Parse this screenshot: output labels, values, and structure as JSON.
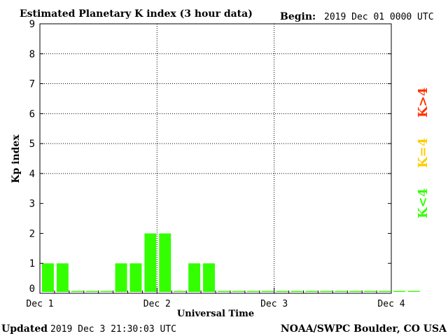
{
  "header": {
    "title": "Estimated Planetary K index (3 hour data)",
    "begin_label": "Begin:",
    "begin_value": "2019 Dec 01 0000 UTC"
  },
  "footer": {
    "updated_label": "Updated",
    "updated_value": "2019 Dec  3 21:30:03 UTC",
    "source": "NOAA/SWPC Boulder, CO USA"
  },
  "legend": {
    "low": "K<4",
    "equal": "K=4",
    "high": "K>4",
    "colors": {
      "low": "#33ff00",
      "equal": "#ffcc00",
      "high": "#ff3300"
    }
  },
  "chart_data": {
    "type": "bar",
    "title": "Estimated Planetary K index (3 hour data)",
    "xlabel": "Universal Time",
    "ylabel": "Kp index",
    "ylim": [
      0,
      9
    ],
    "yticks": [
      "0",
      "1",
      "2",
      "3",
      "4",
      "5",
      "6",
      "7",
      "8",
      "9"
    ],
    "xticks": [
      "Dec 1",
      "Dec 2",
      "Dec 3",
      "Dec 4"
    ],
    "grid": "dotted at Kp 4 to 8 and day boundaries",
    "interval_hours": 3,
    "bar_color": "#33ff00",
    "values": [
      1,
      1,
      0,
      0,
      0,
      1,
      1,
      2,
      2,
      0,
      1,
      1,
      0,
      0,
      0,
      0,
      0,
      0,
      0,
      0,
      0,
      0,
      0,
      0,
      0,
      0
    ]
  }
}
